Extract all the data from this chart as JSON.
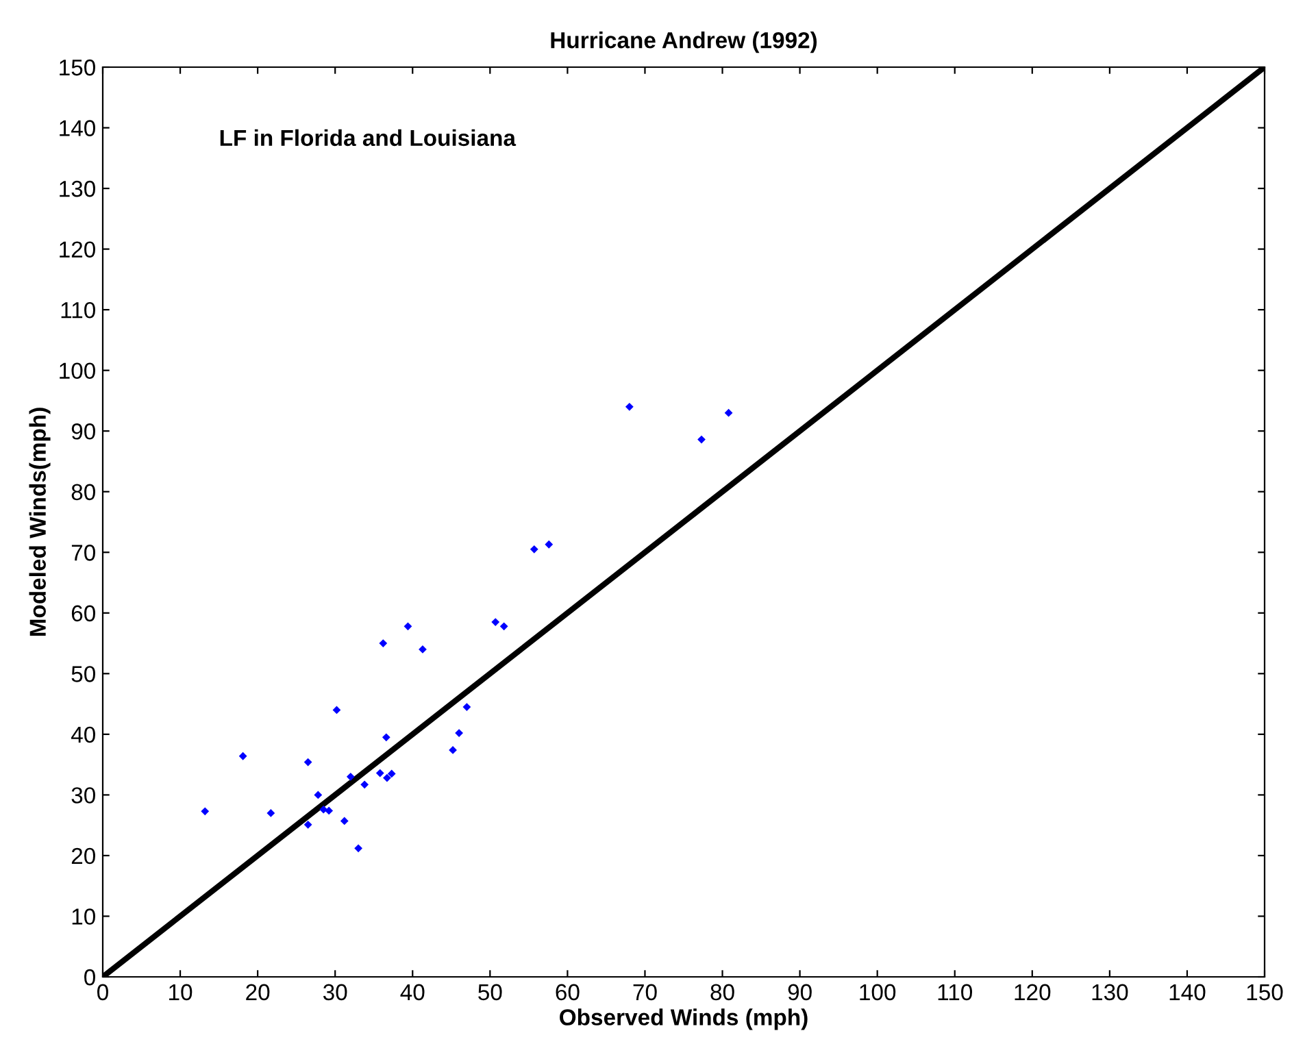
{
  "chart_data": {
    "type": "scatter",
    "title": "Hurricane Andrew (1992)",
    "xlabel": "Observed Winds (mph)",
    "ylabel": "Modeled Winds(mph)",
    "annotations": [
      "LF in Florida and Louisiana"
    ],
    "series": [
      {
        "marker": "diamond",
        "color": "#0000ff",
        "x": [
          13.2,
          18.1,
          21.7,
          26.5,
          26.5,
          27.8,
          28.5,
          29.2,
          30.2,
          31.2,
          32,
          33,
          33.8,
          35.8,
          36.2,
          36.6,
          36.7,
          37.3,
          39.4,
          41.3,
          45.2,
          46,
          47,
          50.7,
          51.8,
          55.7,
          57.6,
          68,
          77.3,
          80.8
        ],
        "values": [
          27.3,
          36.4,
          27,
          35.4,
          25.1,
          30,
          27.6,
          27.4,
          44,
          25.7,
          33,
          21.2,
          31.7,
          33.6,
          55,
          39.5,
          32.8,
          33.5,
          57.8,
          54,
          37.4,
          40.2,
          44.5,
          58.5,
          57.8,
          70.5,
          71.3,
          94,
          88.6,
          93
        ]
      },
      {
        "type": "line",
        "marker": "none",
        "color": "#000000",
        "x": [
          0,
          150
        ],
        "values": [
          0,
          150
        ]
      }
    ],
    "xlim": [
      0,
      150
    ],
    "ylim": [
      0,
      150
    ],
    "xticks": [
      0,
      10,
      20,
      30,
      40,
      50,
      60,
      70,
      80,
      90,
      100,
      110,
      120,
      130,
      140,
      150
    ],
    "yticks": [
      0,
      10,
      20,
      30,
      40,
      50,
      60,
      70,
      80,
      90,
      100,
      110,
      120,
      130,
      140,
      150
    ],
    "grid": false,
    "legend": false
  }
}
